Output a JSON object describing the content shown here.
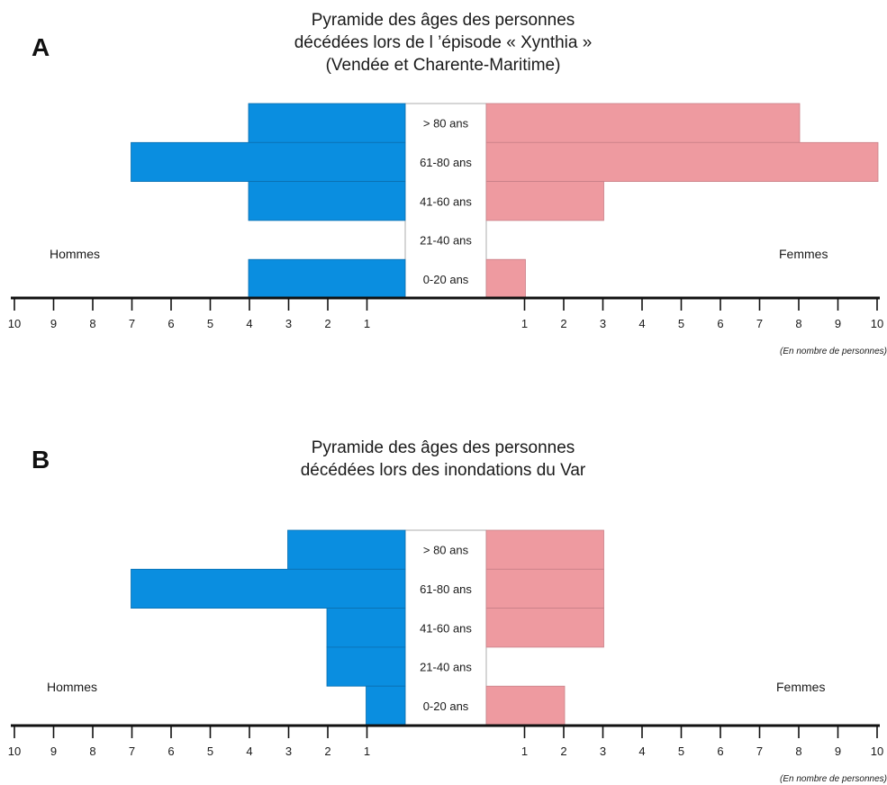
{
  "chart_data": [
    {
      "panel": "A",
      "type": "bar",
      "orientation": "horizontal",
      "title_lines": [
        "Pyramide des âges des personnes",
        "décédées lors de l ’épisode « Xynthia »",
        "(Vendée et Charente-Maritime)"
      ],
      "categories": [
        "> 80 ans",
        "61-80 ans",
        "41-60 ans",
        "21-40 ans",
        "0-20 ans"
      ],
      "series": [
        {
          "name": "Hommes",
          "values": [
            4,
            7,
            4,
            0,
            4
          ],
          "color": "#0a8ee0",
          "side": "left"
        },
        {
          "name": "Femmes",
          "values": [
            8,
            10,
            3,
            0,
            1
          ],
          "color": "#ee9aa0",
          "side": "right"
        }
      ],
      "xlim": [
        0,
        10
      ],
      "left_ticks": [
        "10",
        "9",
        "8",
        "7",
        "6",
        "5",
        "4",
        "3",
        "2",
        "1"
      ],
      "right_ticks": [
        "1",
        "2",
        "3",
        "4",
        "5",
        "6",
        "7",
        "8",
        "9",
        "10"
      ],
      "unit_note": "(En nombre de personnes)"
    },
    {
      "panel": "B",
      "type": "bar",
      "orientation": "horizontal",
      "title_lines": [
        "Pyramide des âges des personnes",
        "décédées lors des inondations du Var"
      ],
      "categories": [
        "> 80 ans",
        "61-80 ans",
        "41-60 ans",
        "21-40 ans",
        "0-20 ans"
      ],
      "series": [
        {
          "name": "Hommes",
          "values": [
            3,
            7,
            2,
            2,
            1
          ],
          "color": "#0a8ee0",
          "side": "left"
        },
        {
          "name": "Femmes",
          "values": [
            3,
            3,
            3,
            0,
            2
          ],
          "color": "#ee9aa0",
          "side": "right"
        }
      ],
      "xlim": [
        0,
        10
      ],
      "left_ticks": [
        "10",
        "9",
        "8",
        "7",
        "6",
        "5",
        "4",
        "3",
        "2",
        "1"
      ],
      "right_ticks": [
        "1",
        "2",
        "3",
        "4",
        "5",
        "6",
        "7",
        "8",
        "9",
        "10"
      ],
      "unit_note": "(En nombre de personnes)"
    }
  ]
}
